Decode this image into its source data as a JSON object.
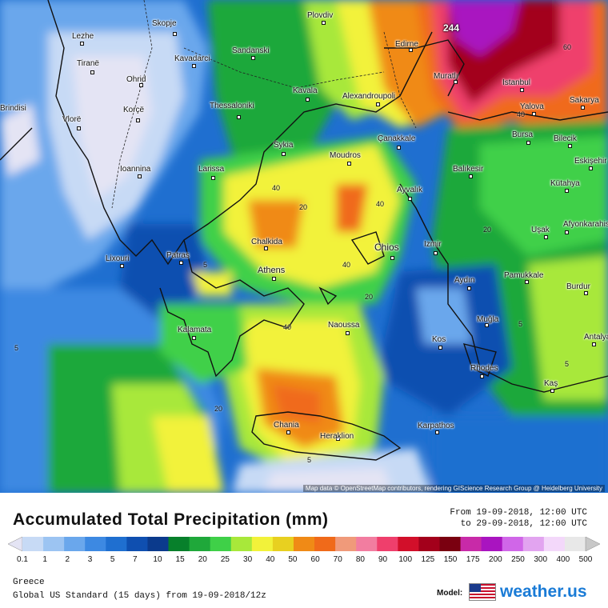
{
  "map": {
    "cities": [
      {
        "name": "Skopje"
      },
      {
        "name": "Plovdiv"
      },
      {
        "name": "Edirne"
      },
      {
        "name": "Lezhe"
      },
      {
        "name": "Tiranë"
      },
      {
        "name": "Kavadarci"
      },
      {
        "name": "Sandanski"
      },
      {
        "name": "Ohrid"
      },
      {
        "name": "Muratlı"
      },
      {
        "name": "Istanbul"
      },
      {
        "name": "Korçë"
      },
      {
        "name": "Thessaloniki"
      },
      {
        "name": "Kavala"
      },
      {
        "name": "Alexandroupoli"
      },
      {
        "name": "Yalova"
      },
      {
        "name": "Sakarya"
      },
      {
        "name": "Vlorë"
      },
      {
        "name": "Sykia"
      },
      {
        "name": "Çanakkale"
      },
      {
        "name": "Bursa"
      },
      {
        "name": "Bilecik"
      },
      {
        "name": "Moudros"
      },
      {
        "name": "Eskişehir"
      },
      {
        "name": "Ioannina"
      },
      {
        "name": "Larissa"
      },
      {
        "name": "Balıkesir"
      },
      {
        "name": "Kütahya"
      },
      {
        "name": "Ayvalık"
      },
      {
        "name": "Chalkida"
      },
      {
        "name": "Izmir"
      },
      {
        "name": "Uşak"
      },
      {
        "name": "Afyonkarahisar"
      },
      {
        "name": "Lixouri"
      },
      {
        "name": "Patras"
      },
      {
        "name": "Chios"
      },
      {
        "name": "Athens"
      },
      {
        "name": "Aydın"
      },
      {
        "name": "Pamukkale"
      },
      {
        "name": "Burdur"
      },
      {
        "name": "Naoussa"
      },
      {
        "name": "Kalamata"
      },
      {
        "name": "Muğla"
      },
      {
        "name": "Kos"
      },
      {
        "name": "Antalya"
      },
      {
        "name": "Rhodes"
      },
      {
        "name": "Kaş"
      },
      {
        "name": "Karpathos"
      },
      {
        "name": "Chania"
      },
      {
        "name": "Heraklion"
      },
      {
        "name": "Brindisi"
      }
    ],
    "max_label": "244",
    "contour_labels": [
      "60",
      "40",
      "40",
      "40",
      "40",
      "40",
      "20",
      "20",
      "20",
      "20",
      "5",
      "5",
      "5",
      "5",
      "5"
    ],
    "attribution": "Map data © OpenStreetMap contributors, rendering GIScience Research Group @ Heidelberg University"
  },
  "legend": {
    "title": "Accumulated Total Precipitation (mm)",
    "date_from": "From 19-09-2018, 12:00 UTC",
    "date_to": "to 29-09-2018, 12:00 UTC",
    "ticks": [
      "0.1",
      "1",
      "2",
      "3",
      "5",
      "7",
      "10",
      "15",
      "20",
      "25",
      "30",
      "40",
      "50",
      "60",
      "70",
      "80",
      "90",
      "100",
      "125",
      "150",
      "175",
      "200",
      "250",
      "300",
      "400",
      "500"
    ],
    "colors": [
      "#e4e4f4",
      "#c7daf5",
      "#9cc4f2",
      "#6aa7ec",
      "#3d89e2",
      "#1f6fd0",
      "#0f4fb0",
      "#0b3a8c",
      "#07802b",
      "#1fa83a",
      "#3fd048",
      "#a8e83a",
      "#f2f23a",
      "#e8d020",
      "#f08a16",
      "#f06a1a",
      "#f09a7a",
      "#f27da0",
      "#ef3f6c",
      "#d20f2a",
      "#a3001b",
      "#7a0010",
      "#c82aa8",
      "#a914c0",
      "#d066e8",
      "#e2a4f0",
      "#f3d8fa",
      "#e8e8e8",
      "#c8c8c8"
    ],
    "region": "Greece",
    "model_run": "Global US Standard (15 days) from 19-09-2018/12z",
    "model_label": "Model:",
    "brand": "weather.us"
  }
}
